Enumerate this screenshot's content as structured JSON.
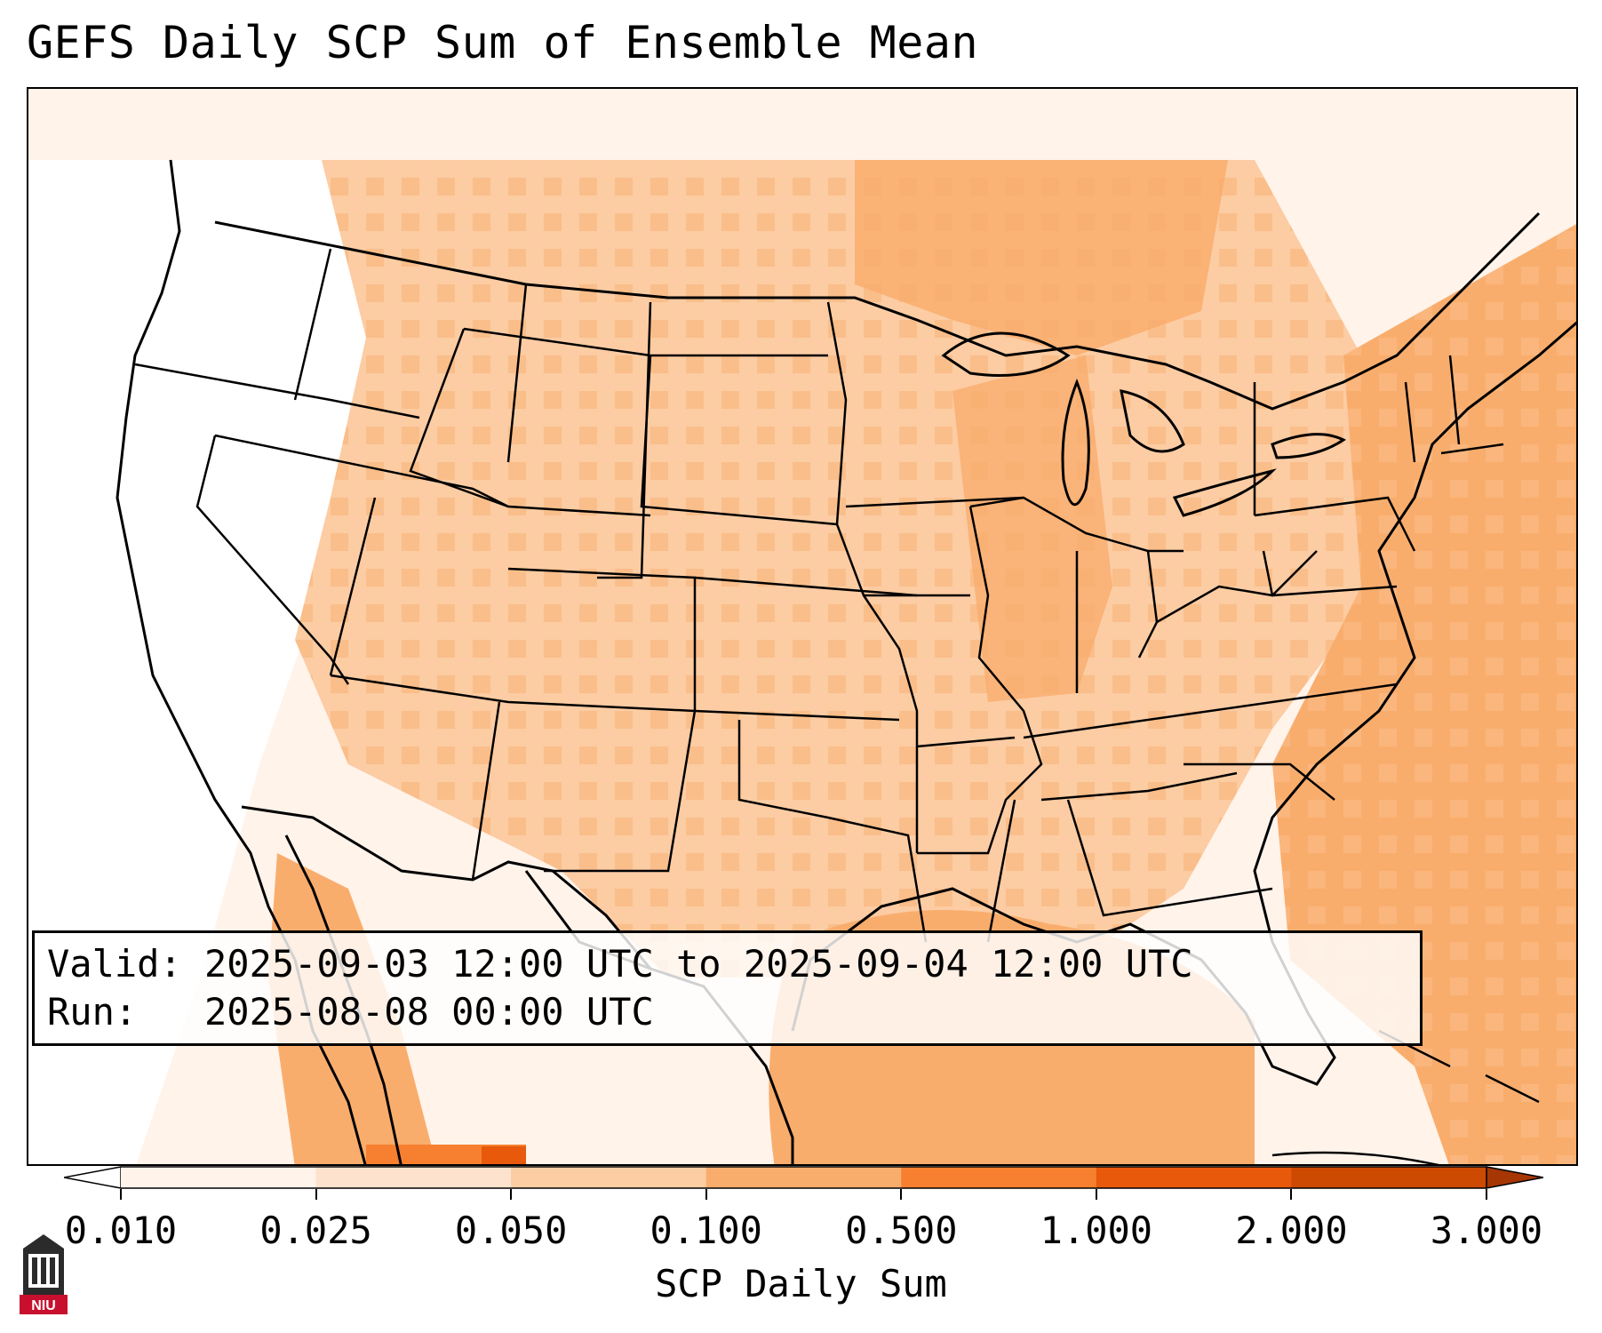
{
  "title": "GEFS Daily SCP Sum of Ensemble Mean",
  "map": {
    "region": "Contiguous United States, northern Mexico, Gulf of Mexico, western Atlantic",
    "field": "SCP daily sum (ensemble mean)",
    "dominant_level_land": "0.050–0.100",
    "highest_level_offshore": "0.100–0.500",
    "colors": {
      "lt_0010": "#ffffff",
      "0010_0025": "#fff3ea",
      "0025_0050": "#fde2cd",
      "0050_0100": "#fccca3",
      "0100_0500": "#f9ad6d",
      "0500_1000": "#f6802f",
      "1000_2000": "#e8590c",
      "2000_3000": "#cc4a02",
      "gt_3000": "#a63603"
    }
  },
  "info": {
    "valid_line": "Valid: 2025-09-03 12:00 UTC to 2025-09-04 12:00 UTC",
    "run_line": "Run:   2025-08-08 00:00 UTC"
  },
  "colorbar": {
    "label": "SCP Daily Sum",
    "ticks": [
      "0.010",
      "0.025",
      "0.050",
      "0.100",
      "0.500",
      "1.000",
      "2.000",
      "3.000"
    ],
    "extend": "both"
  },
  "logo": {
    "text": "NIU",
    "color": "#c8102e"
  }
}
